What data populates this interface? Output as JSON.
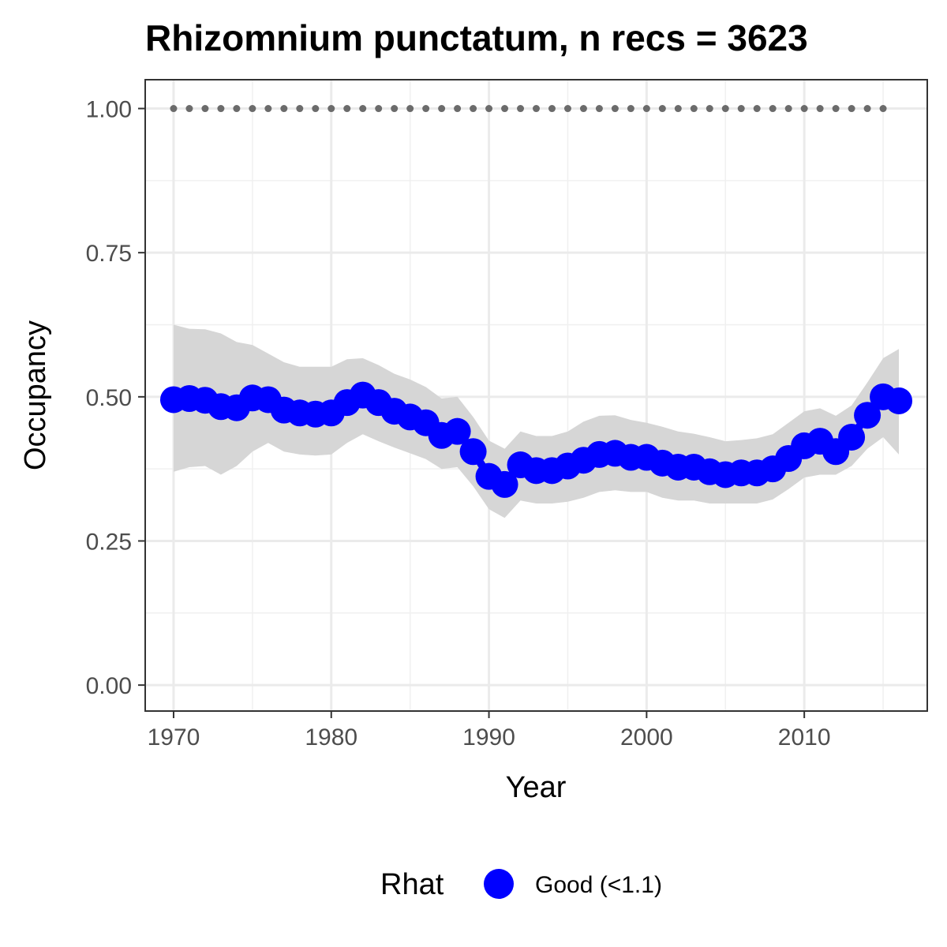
{
  "chart_data": {
    "type": "line",
    "title": "Rhizomnium punctatum, n recs = 3623",
    "xlabel": "Year",
    "ylabel": "Occupancy",
    "xlim": [
      1968.2,
      2017.8
    ],
    "ylim": [
      -0.045,
      1.05
    ],
    "xticks": [
      1970,
      1980,
      1990,
      2000,
      2010
    ],
    "xtick_labels": [
      "1970",
      "1980",
      "1990",
      "2000",
      "2010"
    ],
    "yticks": [
      0,
      0.25,
      0.5,
      0.75,
      1.0
    ],
    "ytick_labels": [
      "0.00",
      "0.25",
      "0.50",
      "0.75",
      "1.00"
    ],
    "grid": true,
    "legend": {
      "title": "Rhat",
      "placement": "bottom",
      "entries": [
        {
          "label": "Good (<1.1)",
          "color": "#0000ff"
        }
      ]
    },
    "x": [
      1970,
      1971,
      1972,
      1973,
      1974,
      1975,
      1976,
      1977,
      1978,
      1979,
      1980,
      1981,
      1982,
      1983,
      1984,
      1985,
      1986,
      1987,
      1988,
      1989,
      1990,
      1991,
      1992,
      1993,
      1994,
      1995,
      1996,
      1997,
      1998,
      1999,
      2000,
      2001,
      2002,
      2003,
      2004,
      2005,
      2006,
      2007,
      2008,
      2009,
      2010,
      2011,
      2012,
      2013,
      2014,
      2015,
      2016
    ],
    "series": [
      {
        "values": [
          0.495,
          0.497,
          0.494,
          0.483,
          0.481,
          0.498,
          0.495,
          0.477,
          0.472,
          0.47,
          0.472,
          0.49,
          0.503,
          0.49,
          0.475,
          0.465,
          0.455,
          0.433,
          0.44,
          0.405,
          0.362,
          0.348,
          0.382,
          0.372,
          0.372,
          0.38,
          0.39,
          0.4,
          0.402,
          0.395,
          0.395,
          0.385,
          0.378,
          0.378,
          0.37,
          0.365,
          0.368,
          0.368,
          0.375,
          0.393,
          0.415,
          0.423,
          0.405,
          0.43,
          0.468,
          0.5,
          0.493
        ],
        "lower": [
          0.37,
          0.378,
          0.38,
          0.365,
          0.38,
          0.405,
          0.42,
          0.405,
          0.4,
          0.398,
          0.4,
          0.42,
          0.435,
          0.423,
          0.412,
          0.402,
          0.392,
          0.375,
          0.378,
          0.345,
          0.305,
          0.29,
          0.32,
          0.315,
          0.315,
          0.318,
          0.325,
          0.335,
          0.338,
          0.335,
          0.335,
          0.325,
          0.32,
          0.32,
          0.315,
          0.315,
          0.315,
          0.315,
          0.322,
          0.34,
          0.36,
          0.365,
          0.365,
          0.38,
          0.41,
          0.43,
          0.4
        ],
        "upper": [
          0.625,
          0.618,
          0.617,
          0.61,
          0.595,
          0.59,
          0.575,
          0.56,
          0.552,
          0.552,
          0.552,
          0.565,
          0.567,
          0.555,
          0.54,
          0.53,
          0.517,
          0.497,
          0.5,
          0.465,
          0.424,
          0.41,
          0.44,
          0.432,
          0.432,
          0.44,
          0.457,
          0.467,
          0.468,
          0.46,
          0.455,
          0.448,
          0.44,
          0.436,
          0.43,
          0.423,
          0.425,
          0.428,
          0.435,
          0.455,
          0.475,
          0.48,
          0.467,
          0.485,
          0.525,
          0.567,
          0.583
        ],
        "color": "#0000ff",
        "ribbon_color": "#d6d6d6"
      }
    ],
    "reference_points": {
      "x": [
        1970,
        1971,
        1972,
        1973,
        1974,
        1975,
        1976,
        1977,
        1978,
        1979,
        1980,
        1981,
        1982,
        1983,
        1984,
        1985,
        1986,
        1987,
        1988,
        1989,
        1990,
        1991,
        1992,
        1993,
        1994,
        1995,
        1996,
        1997,
        1998,
        1999,
        2000,
        2001,
        2002,
        2003,
        2004,
        2005,
        2006,
        2007,
        2008,
        2009,
        2010,
        2011,
        2012,
        2013,
        2014,
        2015
      ],
      "y": 1.0,
      "color": "#6b6b6b"
    }
  }
}
